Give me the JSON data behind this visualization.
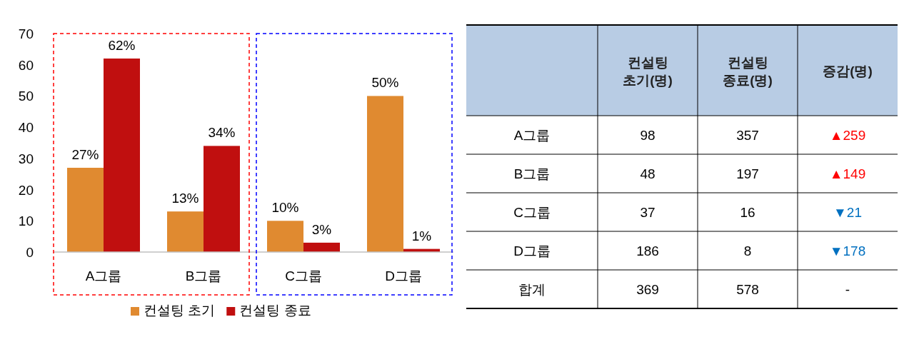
{
  "chart_data": [
    {
      "type": "bar",
      "categories": [
        "A그룹",
        "B그룹",
        "C그룹",
        "D그룹"
      ],
      "series": [
        {
          "name": "컨설팅 초기",
          "color": "#e08a30",
          "values": [
            27,
            13,
            10,
            50
          ],
          "value_labels": [
            "27%",
            "13%",
            "10%",
            "50%"
          ]
        },
        {
          "name": "컨설팅 종료",
          "color": "#c00f0f",
          "values": [
            62,
            34,
            3,
            1
          ],
          "value_labels": [
            "62%",
            "34%",
            "3%",
            "1%"
          ]
        }
      ],
      "ylim": [
        0,
        70
      ],
      "yticks": [
        0,
        10,
        20,
        30,
        40,
        50,
        60,
        70
      ],
      "grid": false,
      "legend": "bottom"
    },
    {
      "type": "other",
      "categories": [
        "A그룹",
        "B그룹",
        "C그룹",
        "D그룹",
        "합계"
      ],
      "series": [
        {
          "name": "컨설팅\n초기(명)",
          "values": [
            98,
            48,
            37,
            186,
            369
          ],
          "data_labels": true
        },
        {
          "name": "컨설팅\n종료(명)",
          "values": [
            357,
            197,
            16,
            8,
            578
          ],
          "data_labels": true
        },
        {
          "name": "증감(명)",
          "values": [
            259,
            149,
            21,
            178,
            null
          ],
          "value_labels": [
            "▲259",
            "▲149",
            "▼21",
            "▼178",
            "-"
          ],
          "colors": [
            "#ff0000",
            "#ff0000",
            "#0070c0",
            "#0070c0",
            "#000000"
          ]
        }
      ]
    }
  ]
}
